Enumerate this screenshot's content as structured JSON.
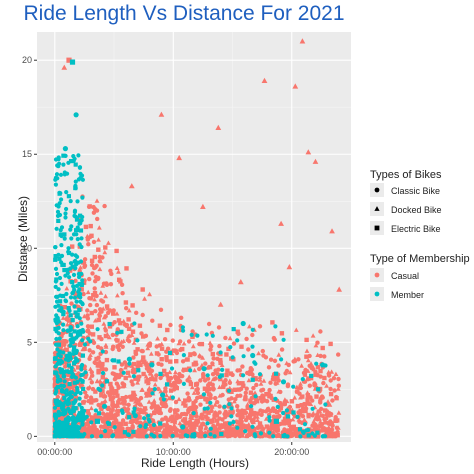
{
  "chart_data": {
    "type": "scatter",
    "title": "Ride Length Vs Distance For 2021",
    "xlabel": "Ride Length (Hours)",
    "ylabel": "Distance (Miles)",
    "xlim": [
      -1.5,
      25
    ],
    "ylim": [
      -0.3,
      21.5
    ],
    "x_ticks": [
      {
        "value": 0,
        "label": "00:00:00"
      },
      {
        "value": 10,
        "label": "10:00:00"
      },
      {
        "value": 20,
        "label": "20:00:00"
      }
    ],
    "y_ticks": [
      0,
      5,
      10,
      15,
      20
    ],
    "grid": true,
    "legend_position": "right",
    "legend_shape": {
      "title": "Types of Bikes",
      "items": [
        {
          "label": "Classic Bike",
          "shape": "circle"
        },
        {
          "label": "Docked Bike",
          "shape": "triangle"
        },
        {
          "label": "Electric Bike",
          "shape": "square"
        }
      ]
    },
    "legend_color": {
      "title": "Type of Membership",
      "items": [
        {
          "label": "Casual",
          "color": "#F8766D"
        },
        {
          "label": "Member",
          "color": "#00BFC4"
        }
      ]
    },
    "series": [
      {
        "name": "Casual",
        "color": "#F8766D",
        "points": [
          {
            "x": 0.8,
            "y": 19.6,
            "shape": "triangle"
          },
          {
            "x": 1.2,
            "y": 20.0,
            "shape": "square"
          },
          {
            "x": 20.9,
            "y": 21.0,
            "shape": "triangle"
          },
          {
            "x": 17.7,
            "y": 18.9,
            "shape": "triangle"
          },
          {
            "x": 13.8,
            "y": 16.4,
            "shape": "triangle"
          },
          {
            "x": 9.0,
            "y": 17.1,
            "shape": "triangle"
          },
          {
            "x": 20.3,
            "y": 18.6,
            "shape": "triangle"
          },
          {
            "x": 21.4,
            "y": 15.1,
            "shape": "triangle"
          },
          {
            "x": 22.0,
            "y": 14.6,
            "shape": "triangle"
          },
          {
            "x": 10.5,
            "y": 14.8,
            "shape": "triangle"
          },
          {
            "x": 6.5,
            "y": 13.3,
            "shape": "triangle"
          },
          {
            "x": 12.5,
            "y": 12.2,
            "shape": "triangle"
          },
          {
            "x": 19.1,
            "y": 11.3,
            "shape": "triangle"
          },
          {
            "x": 23.4,
            "y": 10.9,
            "shape": "triangle"
          },
          {
            "x": 24.0,
            "y": 7.8,
            "shape": "triangle"
          },
          {
            "x": 19.8,
            "y": 9.0,
            "shape": "triangle"
          },
          {
            "x": 15.7,
            "y": 8.2,
            "shape": "triangle"
          },
          {
            "x": 14.0,
            "y": 7.0,
            "shape": "triangle"
          }
        ]
      },
      {
        "name": "Member",
        "color": "#00BFC4",
        "points": [
          {
            "x": 1.5,
            "y": 19.9,
            "shape": "square"
          },
          {
            "x": 1.8,
            "y": 17.1,
            "shape": "circle"
          },
          {
            "x": 0.9,
            "y": 15.3,
            "shape": "circle"
          },
          {
            "x": 6.3,
            "y": 4.1,
            "shape": "circle"
          },
          {
            "x": 8.2,
            "y": 3.8,
            "shape": "circle"
          },
          {
            "x": 12.6,
            "y": 3.6,
            "shape": "circle"
          },
          {
            "x": 15.9,
            "y": 6.0,
            "shape": "circle"
          },
          {
            "x": 19.3,
            "y": 2.9,
            "shape": "circle"
          },
          {
            "x": 22.6,
            "y": 3.8,
            "shape": "circle"
          },
          {
            "x": 16.7,
            "y": 4.3,
            "shape": "circle"
          },
          {
            "x": 9.1,
            "y": 2.2,
            "shape": "circle"
          },
          {
            "x": 4.2,
            "y": 1.6,
            "shape": "circle"
          },
          {
            "x": 6.8,
            "y": 1.1,
            "shape": "circle"
          },
          {
            "x": 18.7,
            "y": 0.8,
            "shape": "square"
          },
          {
            "x": 10.8,
            "y": 0.5,
            "shape": "circle"
          },
          {
            "x": 3.6,
            "y": 0.8,
            "shape": "square"
          },
          {
            "x": 1.6,
            "y": 0.6,
            "shape": "square"
          },
          {
            "x": 0.3,
            "y": 0.4,
            "shape": "square"
          }
        ]
      }
    ]
  }
}
